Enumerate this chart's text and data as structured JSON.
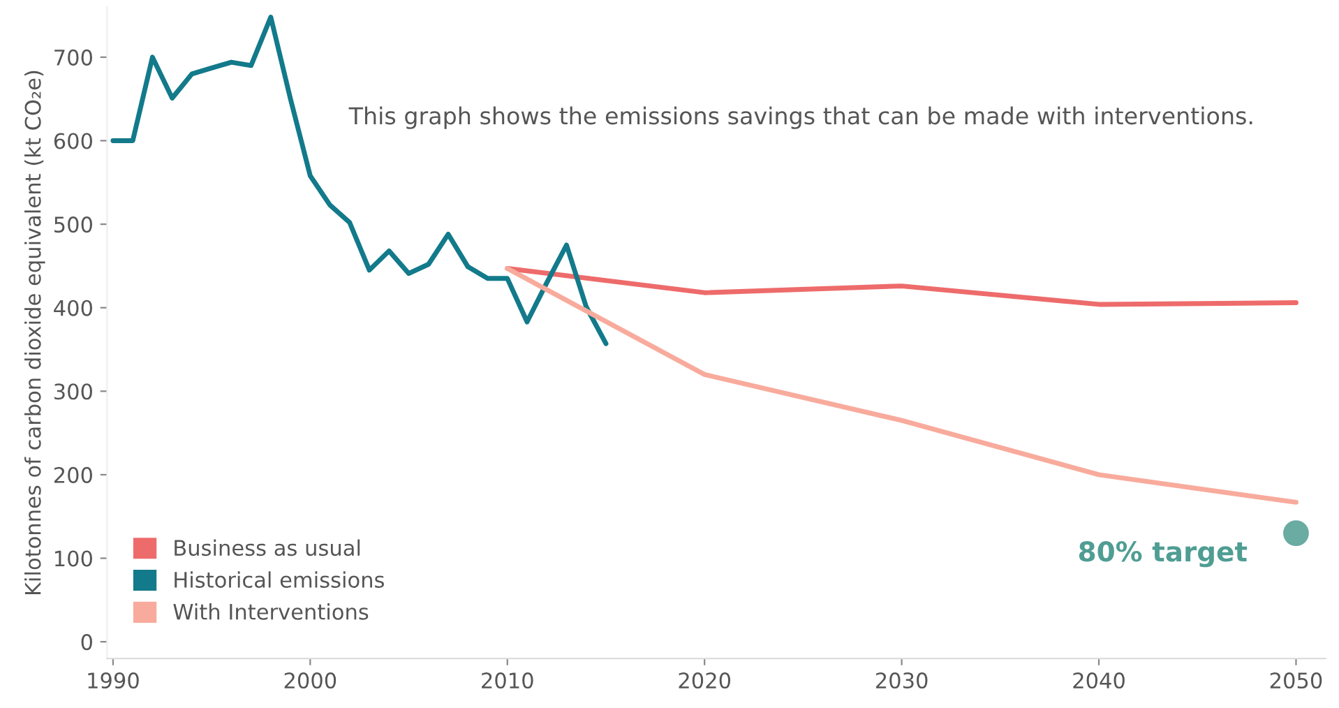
{
  "chart_data": {
    "type": "line",
    "ylabel": "Kilotonnes of carbon dioxide equivalent (kt CO₂e)",
    "annotations": [
      "This graph shows the emissions savings that can be made with interventions.",
      {
        "text": "80% target",
        "x": 2050,
        "y": 130
      }
    ],
    "series": [
      {
        "name": "Business as usual",
        "color": "#ee6b6b",
        "x": [
          2010,
          2020,
          2030,
          2040,
          2050
        ],
        "values": [
          447,
          418,
          426,
          404,
          406
        ]
      },
      {
        "name": "Historical emissions",
        "color": "#127a8a",
        "x": [
          1990,
          1991,
          1992,
          1993,
          1994,
          1995,
          1996,
          1997,
          1998,
          1999,
          2000,
          2001,
          2002,
          2003,
          2004,
          2005,
          2006,
          2007,
          2008,
          2009,
          2010,
          2011,
          2012,
          2013,
          2014,
          2015
        ],
        "values": [
          600,
          600,
          700,
          651,
          680,
          687,
          694,
          690,
          748,
          650,
          558,
          523,
          502,
          445,
          468,
          441,
          452,
          488,
          449,
          435,
          435,
          383,
          430,
          475,
          401,
          357
        ]
      },
      {
        "name": "With Interventions",
        "color": "#f8ab9c",
        "x": [
          2010,
          2020,
          2030,
          2040,
          2050
        ],
        "values": [
          447,
          320,
          265,
          200,
          167
        ]
      },
      {
        "type": "scatter",
        "color": "#6aaba2",
        "x": [
          2050
        ],
        "values": [
          130
        ]
      }
    ],
    "xlim": [
      1989.7,
      2051.5
    ],
    "xticks": [
      1990,
      2000,
      2010,
      2020,
      2030,
      2040,
      2050
    ],
    "ylim": [
      -20,
      760
    ],
    "yticks": [
      0,
      100,
      200,
      300,
      400,
      500,
      600,
      700
    ],
    "grid": false,
    "legend": "bottom left"
  }
}
